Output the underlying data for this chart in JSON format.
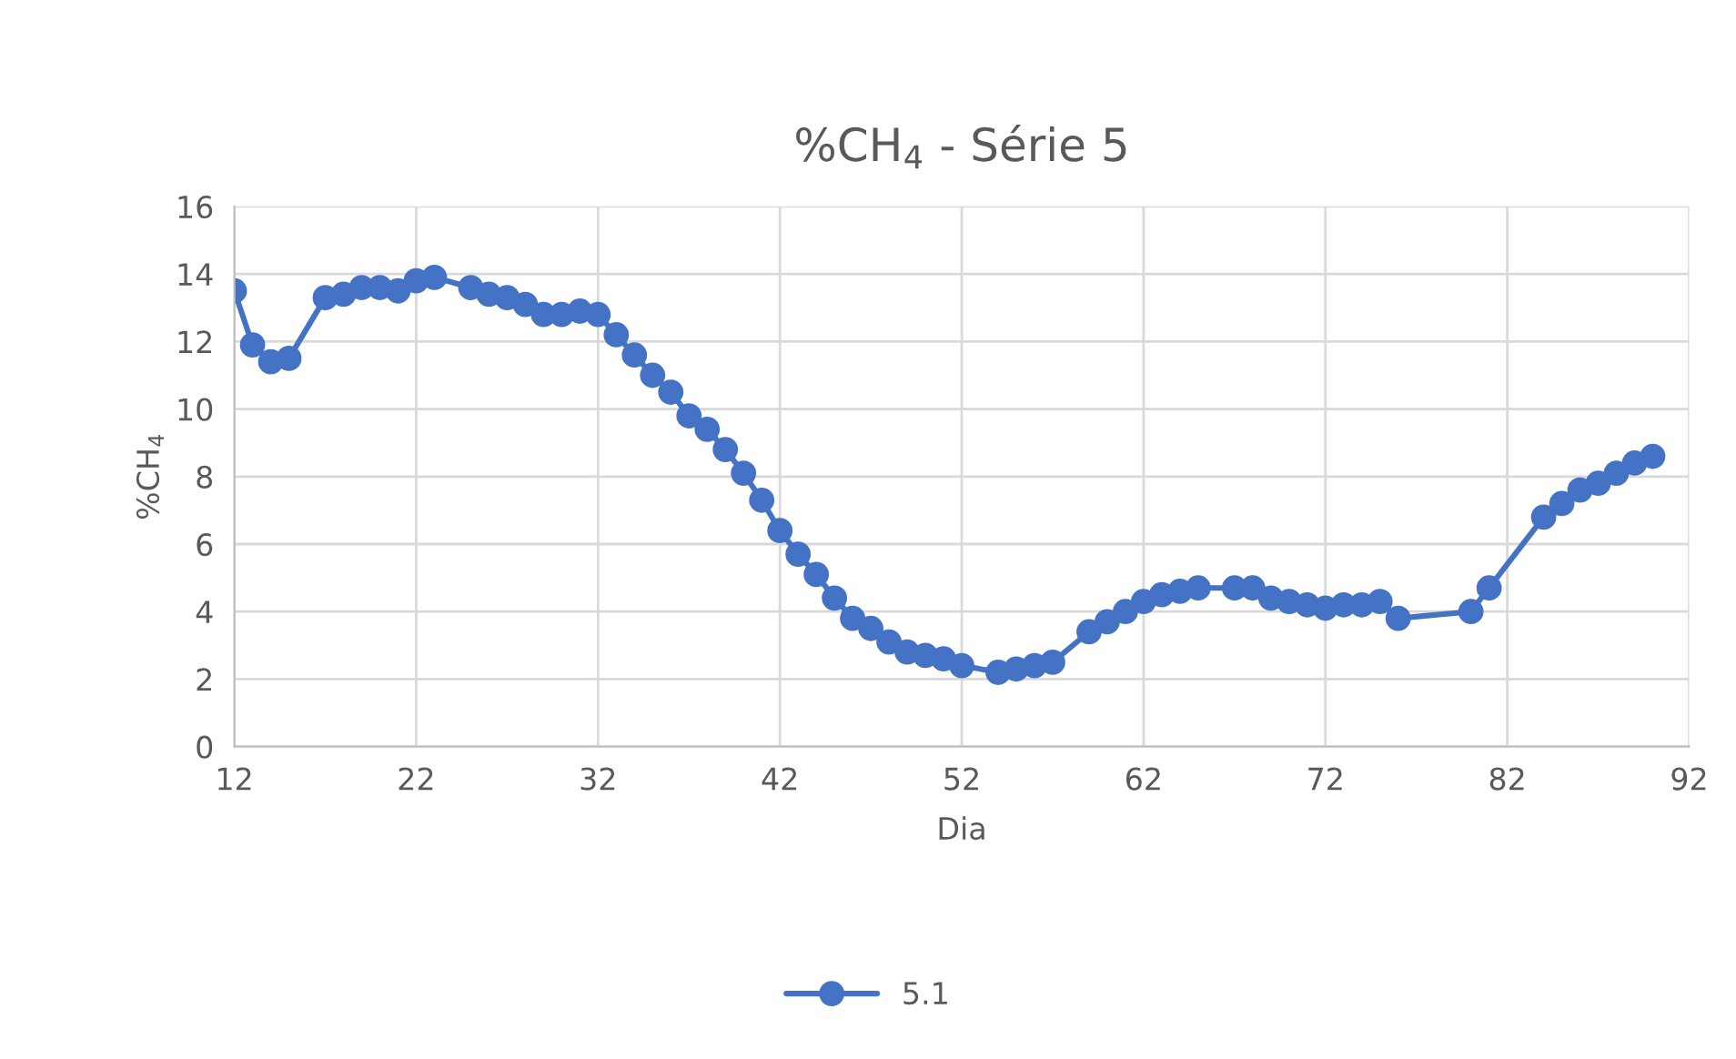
{
  "chart_data": {
    "type": "line",
    "title": "%CH$_{4}$ - Série 5",
    "xlabel": "Dia",
    "ylabel": "%CH$_{4}$",
    "x": [
      12,
      13,
      14,
      15,
      17,
      18,
      19,
      20,
      21,
      22,
      23,
      25,
      26,
      27,
      28,
      29,
      30,
      31,
      32,
      33,
      34,
      35,
      36,
      37,
      38,
      39,
      40,
      41,
      42,
      43,
      44,
      45,
      46,
      47,
      48,
      49,
      50,
      51,
      52,
      54,
      55,
      56,
      57,
      59,
      60,
      61,
      62,
      63,
      64,
      65,
      67,
      68,
      69,
      70,
      71,
      72,
      73,
      74,
      75,
      76,
      80,
      81,
      84,
      85,
      86,
      87,
      88,
      89,
      90
    ],
    "series": [
      {
        "name": "5.1",
        "color": "#4472c4",
        "values": [
          13.5,
          11.9,
          11.4,
          11.5,
          13.3,
          13.4,
          13.6,
          13.6,
          13.5,
          13.8,
          13.9,
          13.6,
          13.4,
          13.3,
          13.1,
          12.8,
          12.8,
          12.9,
          12.8,
          12.2,
          11.6,
          11.0,
          10.5,
          9.8,
          9.4,
          8.8,
          8.1,
          7.3,
          6.4,
          5.7,
          5.1,
          4.4,
          3.8,
          3.5,
          3.1,
          2.8,
          2.7,
          2.6,
          2.4,
          2.2,
          2.3,
          2.4,
          2.5,
          3.4,
          3.7,
          4.0,
          4.3,
          4.5,
          4.6,
          4.7,
          4.7,
          4.7,
          4.4,
          4.3,
          4.2,
          4.1,
          4.2,
          4.2,
          4.3,
          3.8,
          4.0,
          4.7,
          6.8,
          7.2,
          7.6,
          7.8,
          8.1,
          8.4,
          8.6
        ]
      }
    ],
    "xlim": [
      12,
      92
    ],
    "xticks": [
      12,
      22,
      32,
      42,
      52,
      62,
      72,
      82,
      92
    ],
    "ylim": [
      0,
      16
    ],
    "yticks": [
      0,
      2,
      4,
      6,
      8,
      10,
      12,
      14,
      16
    ],
    "grid": true,
    "legend": "bottom",
    "marker": "circle",
    "line_style": "solid"
  }
}
